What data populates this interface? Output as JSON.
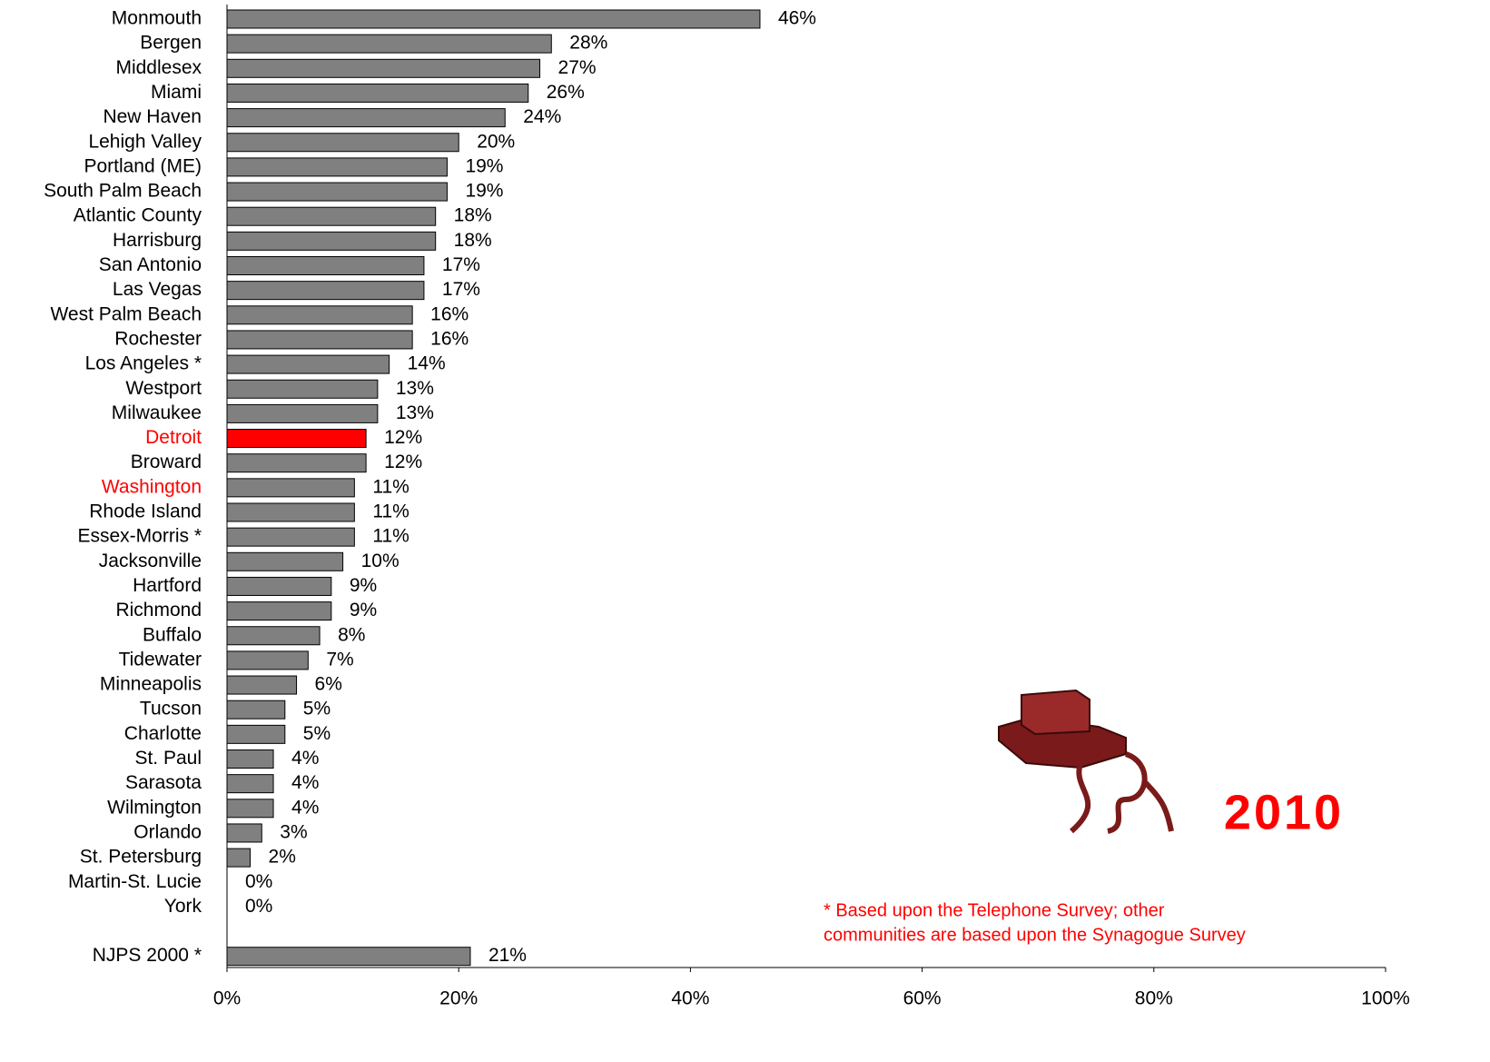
{
  "chart_data": {
    "type": "barh",
    "categories": [
      "Monmouth",
      "Bergen",
      "Middlesex",
      "Miami",
      "New Haven",
      "Lehigh Valley",
      "Portland (ME)",
      "South Palm Beach",
      "Atlantic County",
      "Harrisburg",
      "San Antonio",
      "Las Vegas",
      "West Palm Beach",
      "Rochester",
      "Los Angeles *",
      "Westport",
      "Milwaukee",
      "Detroit",
      "Broward",
      "Washington",
      "Rhode Island",
      "Essex-Morris *",
      "Jacksonville",
      "Hartford",
      "Richmond",
      "Buffalo",
      "Tidewater",
      "Minneapolis",
      "Tucson",
      "Charlotte",
      "St. Paul",
      "Sarasota",
      "Wilmington",
      "Orlando",
      "St. Petersburg",
      "Martin-St. Lucie",
      "York",
      null,
      "NJPS 2000 *"
    ],
    "values": [
      46,
      28,
      27,
      26,
      24,
      20,
      19,
      19,
      18,
      18,
      17,
      17,
      16,
      16,
      14,
      13,
      13,
      12,
      12,
      11,
      11,
      11,
      10,
      9,
      9,
      8,
      7,
      6,
      5,
      5,
      4,
      4,
      4,
      3,
      2,
      0,
      0,
      null,
      21
    ],
    "value_labels": [
      "46%",
      "28%",
      "27%",
      "26%",
      "24%",
      "20%",
      "19%",
      "19%",
      "18%",
      "18%",
      "17%",
      "17%",
      "16%",
      "16%",
      "14%",
      "13%",
      "13%",
      "12%",
      "12%",
      "11%",
      "11%",
      "11%",
      "10%",
      "9%",
      "9%",
      "8%",
      "7%",
      "6%",
      "5%",
      "5%",
      "4%",
      "4%",
      "4%",
      "3%",
      "2%",
      "0%",
      "0%",
      null,
      "21%"
    ],
    "colors": [
      "#808080",
      "#808080",
      "#808080",
      "#808080",
      "#808080",
      "#808080",
      "#808080",
      "#808080",
      "#808080",
      "#808080",
      "#808080",
      "#808080",
      "#808080",
      "#808080",
      "#808080",
      "#808080",
      "#808080",
      "#ff0000",
      "#808080",
      "#808080",
      "#808080",
      "#808080",
      "#808080",
      "#808080",
      "#808080",
      "#808080",
      "#808080",
      "#808080",
      "#808080",
      "#808080",
      "#808080",
      "#808080",
      "#808080",
      "#808080",
      "#808080",
      "#808080",
      "#808080",
      null,
      "#808080"
    ],
    "label_colors": [
      "#000000",
      "#000000",
      "#000000",
      "#000000",
      "#000000",
      "#000000",
      "#000000",
      "#000000",
      "#000000",
      "#000000",
      "#000000",
      "#000000",
      "#000000",
      "#000000",
      "#000000",
      "#000000",
      "#000000",
      "#ff0000",
      "#000000",
      "#ff0000",
      "#000000",
      "#000000",
      "#000000",
      "#000000",
      "#000000",
      "#000000",
      "#000000",
      "#000000",
      "#000000",
      "#000000",
      "#000000",
      "#000000",
      "#000000",
      "#000000",
      "#000000",
      "#000000",
      "#000000",
      null,
      "#000000"
    ],
    "xlim": [
      0,
      100
    ],
    "xticks": [
      {
        "value": 0,
        "label": "0%"
      },
      {
        "value": 20,
        "label": "20%"
      },
      {
        "value": 40,
        "label": "40%"
      },
      {
        "value": 60,
        "label": "60%"
      },
      {
        "value": 80,
        "label": "80%"
      },
      {
        "value": 100,
        "label": "100%"
      }
    ],
    "annotations": [
      "2010",
      "* Based upon the Telephone Survey; other",
      "communities are based upon the Synagogue Survey"
    ]
  }
}
